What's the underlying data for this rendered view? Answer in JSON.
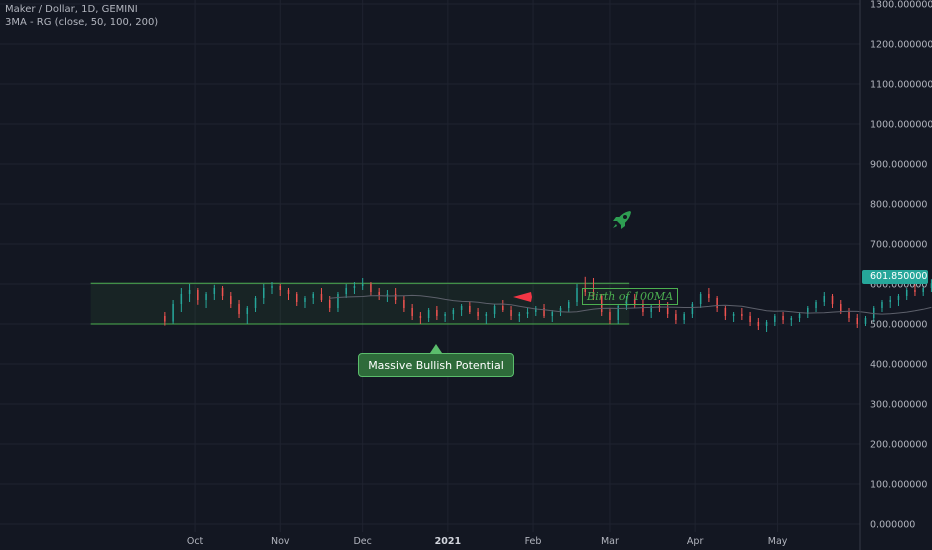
{
  "legend": {
    "title": "Maker / Dollar, 1D, GEMINI",
    "indicator": "3MA - RG (close, 50, 100, 200)"
  },
  "annotations": {
    "callout_text": "Massive Bullish Potential",
    "birth_label": "Birth of 100MA",
    "last_price_label": "601.850000",
    "rocket_icon": "rocket-icon",
    "arrow_icon": "red-arrow-icon"
  },
  "colors": {
    "background": "#131722",
    "up": "#26a69a",
    "down": "#ef5350",
    "channel": "#4caf50",
    "arrow": "#f23645"
  },
  "chart_data": {
    "type": "candlestick",
    "title": "Maker / Dollar, 1D, GEMINI",
    "y_ticks": [
      "1300.000000",
      "1200.000000",
      "1100.000000",
      "1000.000000",
      "900.000000",
      "800.000000",
      "700.000000",
      "600.000000",
      "500.000000",
      "400.000000",
      "300.000000",
      "200.000000",
      "100.000000",
      "0.000000"
    ],
    "y_tick_values": [
      1300,
      1200,
      1100,
      1000,
      900,
      800,
      700,
      600,
      500,
      400,
      300,
      200,
      100,
      0
    ],
    "ylim": [
      -20,
      1310
    ],
    "x_ticks": [
      "Oct",
      "Nov",
      "Dec",
      "2021",
      "Feb",
      "Mar",
      "Apr",
      "May"
    ],
    "x_tick_dates": [
      "2020-10-01",
      "2020-11-01",
      "2020-12-01",
      "2021-01-01",
      "2021-02-01",
      "2021-03-01",
      "2021-04-01",
      "2021-05-01"
    ],
    "x_range": [
      "2020-07-22",
      "2021-05-31"
    ],
    "start_date": "2020-09-20",
    "channel": {
      "from": "2020-08-24",
      "to": "2021-03-08",
      "low": 500,
      "high": 601.85
    },
    "last_price": 601.85,
    "grid": true,
    "ohlc": [
      [
        520,
        530,
        496,
        506
      ],
      [
        506,
        560,
        500,
        550
      ],
      [
        550,
        590,
        530,
        575
      ],
      [
        575,
        600,
        555,
        585
      ],
      [
        585,
        590,
        548,
        560
      ],
      [
        560,
        580,
        540,
        575
      ],
      [
        575,
        598,
        560,
        590
      ],
      [
        590,
        595,
        560,
        570
      ],
      [
        570,
        580,
        540,
        550
      ],
      [
        550,
        560,
        515,
        525
      ],
      [
        525,
        545,
        500,
        540
      ],
      [
        540,
        570,
        530,
        565
      ],
      [
        565,
        600,
        550,
        590
      ],
      [
        590,
        605,
        575,
        595
      ],
      [
        595,
        600,
        570,
        585
      ],
      [
        585,
        590,
        560,
        575
      ],
      [
        575,
        580,
        545,
        555
      ],
      [
        555,
        570,
        540,
        565
      ],
      [
        565,
        580,
        550,
        575
      ],
      [
        575,
        590,
        555,
        560
      ],
      [
        560,
        570,
        530,
        540
      ],
      [
        540,
        580,
        530,
        575
      ],
      [
        575,
        600,
        565,
        590
      ],
      [
        590,
        605,
        575,
        595
      ],
      [
        595,
        615,
        585,
        600
      ],
      [
        600,
        605,
        570,
        580
      ],
      [
        580,
        590,
        560,
        570
      ],
      [
        570,
        585,
        555,
        575
      ],
      [
        575,
        590,
        550,
        560
      ],
      [
        560,
        570,
        530,
        540
      ],
      [
        540,
        550,
        510,
        520
      ],
      [
        520,
        530,
        500,
        515
      ],
      [
        515,
        540,
        505,
        535
      ],
      [
        535,
        545,
        510,
        520
      ],
      [
        520,
        530,
        505,
        525
      ],
      [
        525,
        540,
        510,
        535
      ],
      [
        535,
        550,
        520,
        545
      ],
      [
        545,
        555,
        525,
        530
      ],
      [
        530,
        540,
        510,
        520
      ],
      [
        520,
        530,
        500,
        525
      ],
      [
        525,
        550,
        515,
        545
      ],
      [
        545,
        560,
        530,
        535
      ],
      [
        535,
        545,
        510,
        520
      ],
      [
        520,
        530,
        505,
        525
      ],
      [
        525,
        540,
        515,
        530
      ],
      [
        530,
        545,
        520,
        540
      ],
      [
        540,
        550,
        515,
        520
      ],
      [
        520,
        535,
        505,
        530
      ],
      [
        530,
        545,
        520,
        540
      ],
      [
        540,
        560,
        530,
        555
      ],
      [
        555,
        600,
        545,
        590
      ],
      [
        590,
        618,
        570,
        580
      ],
      [
        580,
        615,
        560,
        570
      ],
      [
        570,
        575,
        520,
        530
      ],
      [
        530,
        540,
        500,
        510
      ],
      [
        510,
        550,
        500,
        545
      ],
      [
        545,
        570,
        535,
        560
      ],
      [
        560,
        575,
        540,
        550
      ],
      [
        550,
        560,
        520,
        530
      ],
      [
        530,
        550,
        515,
        545
      ],
      [
        545,
        560,
        530,
        540
      ],
      [
        540,
        555,
        515,
        525
      ],
      [
        525,
        535,
        500,
        510
      ],
      [
        510,
        530,
        500,
        525
      ],
      [
        525,
        555,
        515,
        550
      ],
      [
        550,
        580,
        540,
        575
      ],
      [
        575,
        590,
        555,
        565
      ],
      [
        565,
        570,
        530,
        540
      ],
      [
        540,
        545,
        510,
        520
      ],
      [
        520,
        530,
        505,
        525
      ],
      [
        525,
        540,
        510,
        520
      ],
      [
        520,
        530,
        495,
        505
      ],
      [
        505,
        515,
        485,
        495
      ],
      [
        495,
        510,
        480,
        505
      ],
      [
        505,
        525,
        495,
        520
      ],
      [
        520,
        530,
        500,
        510
      ],
      [
        510,
        520,
        495,
        515
      ],
      [
        515,
        530,
        505,
        525
      ],
      [
        525,
        545,
        515,
        540
      ],
      [
        540,
        560,
        530,
        555
      ],
      [
        555,
        580,
        545,
        570
      ],
      [
        570,
        575,
        540,
        550
      ],
      [
        550,
        560,
        525,
        530
      ],
      [
        530,
        540,
        505,
        515
      ],
      [
        515,
        525,
        490,
        500
      ],
      [
        500,
        520,
        495,
        515
      ],
      [
        515,
        545,
        505,
        540
      ],
      [
        540,
        560,
        530,
        555
      ],
      [
        555,
        570,
        540,
        560
      ],
      [
        560,
        575,
        545,
        570
      ],
      [
        570,
        590,
        560,
        585
      ],
      [
        585,
        600,
        570,
        580
      ],
      [
        580,
        595,
        570,
        590
      ],
      [
        590,
        612,
        580,
        602
      ]
    ]
  }
}
